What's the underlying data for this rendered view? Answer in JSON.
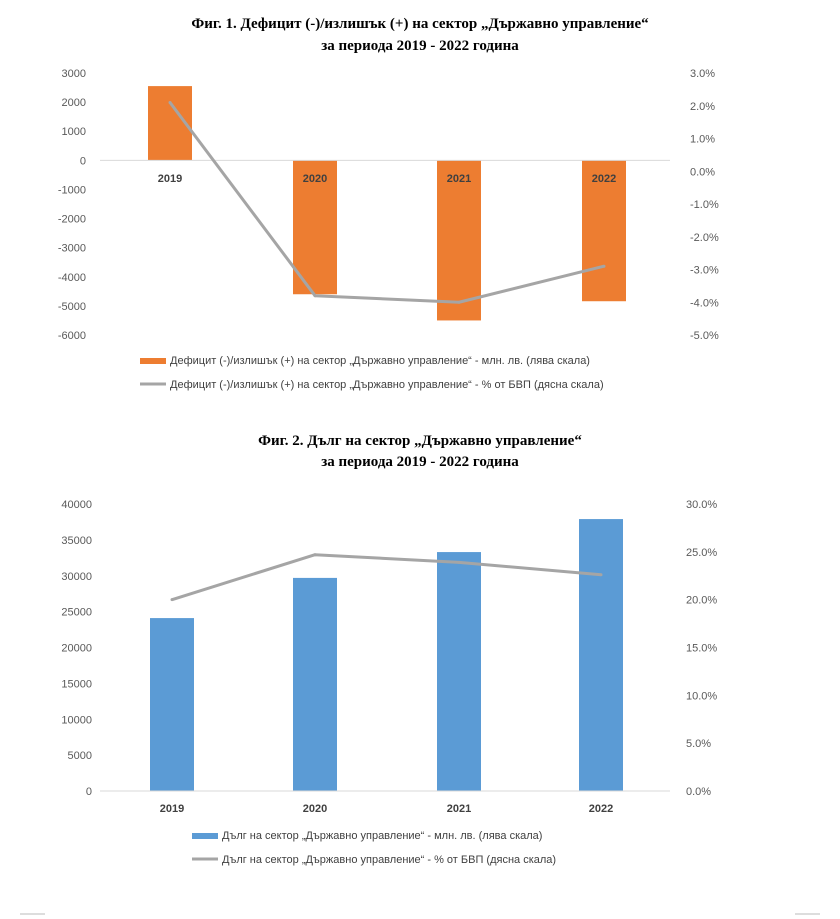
{
  "chart_data": [
    {
      "type": "bar",
      "title": [
        "Фиг. 1. Дефицит (-)/излишък (+) на сектор  „Държавно управление“",
        "за периода 2019 - 2022 година"
      ],
      "categories": [
        "2019",
        "2020",
        "2021",
        "2022"
      ],
      "series": [
        {
          "name": "Дефицит (-)/излишък (+) на сектор „Държавно управление“ - млн. лв. (лява скала)",
          "type": "bar",
          "axis": "left",
          "color": "#ED7D31",
          "values": [
            2550,
            -4600,
            -5500,
            -4840
          ]
        },
        {
          "name": "Дефицит (-)/излишък (+) на сектор „Държавно управление“ - % от БВП (дясна скала)",
          "type": "line",
          "axis": "right",
          "color": "#A5A5A5",
          "values": [
            2.1,
            -3.8,
            -4.0,
            -2.9
          ]
        }
      ],
      "ylim_left": [
        -6000,
        3000
      ],
      "yticks_left": [
        "3000",
        "2000",
        "1000",
        "0",
        "-1000",
        "-2000",
        "-3000",
        "-4000",
        "-5000",
        "-6000"
      ],
      "ylim_right": [
        -5,
        3
      ],
      "yticks_right": [
        "3.0%",
        "2.0%",
        "1.0%",
        "0.0%",
        "-1.0%",
        "-2.0%",
        "-3.0%",
        "-4.0%",
        "-5.0%"
      ],
      "legend": "bottom",
      "grid": false
    },
    {
      "type": "bar",
      "title": [
        "Фиг. 2. Дълг на сектор „Държавно управление“",
        "за периода 2019 - 2022 година"
      ],
      "categories": [
        "2019",
        "2020",
        "2021",
        "2022"
      ],
      "series": [
        {
          "name": "Дълг на сектор „Държавно управление“ - млн. лв. (лява скала)",
          "type": "bar",
          "axis": "left",
          "color": "#5B9BD5",
          "values": [
            24100,
            29700,
            33300,
            37900
          ]
        },
        {
          "name": "Дълг на сектор „Държавно управление“ - % от БВП (дясна скала)",
          "type": "line",
          "axis": "right",
          "color": "#A5A5A5",
          "values": [
            20.0,
            24.7,
            23.9,
            22.6
          ]
        }
      ],
      "ylim_left": [
        0,
        40000
      ],
      "yticks_left": [
        "40000",
        "35000",
        "30000",
        "25000",
        "20000",
        "15000",
        "10000",
        "5000",
        "0"
      ],
      "ylim_right": [
        0,
        30
      ],
      "yticks_right": [
        "30.0%",
        "25.0%",
        "20.0%",
        "15.0%",
        "10.0%",
        "5.0%",
        "0.0%"
      ],
      "legend": "bottom",
      "grid": false
    }
  ]
}
